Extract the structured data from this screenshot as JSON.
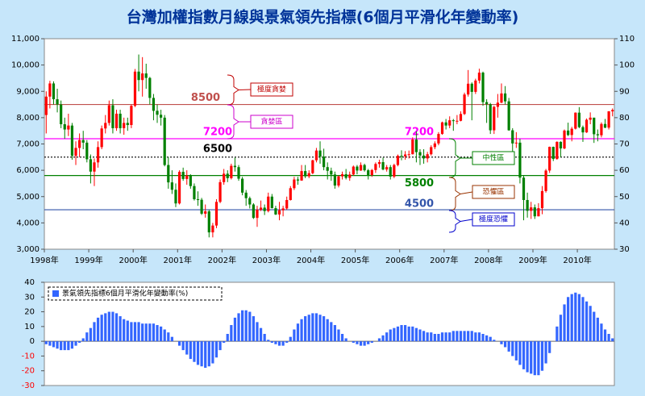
{
  "chart_data": [
    {
      "type": "candlestick",
      "title": "台灣加權指數月線與景氣領先指標(6個月平滑化年變動率)",
      "categories": [
        "1998年",
        null,
        null,
        null,
        null,
        null,
        null,
        null,
        null,
        null,
        null,
        null,
        "1999年",
        null,
        null,
        null,
        null,
        null,
        null,
        null,
        null,
        null,
        null,
        null,
        "2000年",
        null,
        null,
        null,
        null,
        null,
        null,
        null,
        null,
        null,
        null,
        null,
        "2001年",
        null,
        null,
        null,
        null,
        null,
        null,
        null,
        null,
        null,
        null,
        null,
        "2002年",
        null,
        null,
        null,
        null,
        null,
        null,
        null,
        null,
        null,
        null,
        null,
        "2003年",
        null,
        null,
        null,
        null,
        null,
        null,
        null,
        null,
        null,
        null,
        null,
        "2004年",
        null,
        null,
        null,
        null,
        null,
        null,
        null,
        null,
        null,
        null,
        null,
        "2005年",
        null,
        null,
        null,
        null,
        null,
        null,
        null,
        null,
        null,
        null,
        null,
        "2006年",
        null,
        null,
        null,
        null,
        null,
        null,
        null,
        null,
        null,
        null,
        null,
        "2007年",
        null,
        null,
        null,
        null,
        null,
        null,
        null,
        null,
        null,
        null,
        null,
        "2008年",
        null,
        null,
        null,
        null,
        null,
        null,
        null,
        null,
        null,
        null,
        null,
        "2009年",
        null,
        null,
        null,
        null,
        null,
        null,
        null,
        null,
        null,
        null,
        null,
        "2010年",
        null,
        null,
        null,
        null,
        null,
        null,
        null,
        null,
        null
      ],
      "open": [
        8100,
        8800,
        9300,
        8700,
        8500,
        7750,
        7550,
        7700,
        6550,
        6850,
        7150,
        7050,
        6420,
        5950,
        6300,
        6880,
        7590,
        7800,
        8470,
        7600,
        8150,
        7600,
        7800,
        7720,
        8450,
        9750,
        9430,
        9680,
        9510,
        8750,
        8260,
        8110,
        8000,
        6200,
        5540,
        5260,
        4740,
        5940,
        5670,
        5800,
        5400,
        4900,
        4880,
        4350,
        4440,
        3640,
        3900,
        4800,
        5550,
        5870,
        5700,
        6170,
        6120,
        5680,
        5150,
        4940,
        4700,
        4190,
        4500,
        4580,
        4450,
        5000,
        4560,
        4320,
        4480,
        4550,
        4870,
        5320,
        5650,
        5610,
        5970,
        5770,
        5890,
        6380,
        6750,
        6520,
        6120,
        5980,
        5840,
        5420,
        5770,
        5850,
        5710,
        5840,
        6140,
        5990,
        6200,
        6000,
        5820,
        6010,
        6240,
        6310,
        6030,
        6120,
        5760,
        6200,
        6550,
        6530,
        6600,
        6610,
        7170,
        6690,
        6560,
        6450,
        6610,
        6880,
        7020,
        7380,
        7820,
        7700,
        7900,
        7880,
        7880,
        8140,
        8880,
        9290,
        8980,
        9410,
        9710,
        8590,
        8510,
        7520,
        8410,
        8570,
        8920,
        8620,
        7520,
        7020,
        7050,
        5720,
        4870,
        4460,
        4590,
        4250,
        4560,
        5210,
        5990,
        6890,
        6430,
        7080,
        6830,
        7510,
        7340,
        7580,
        8190,
        7640,
        7440,
        7920,
        8000,
        7370,
        7330,
        7760,
        7620,
        8240
      ],
      "high": [
        9000,
        9400,
        9380,
        9100,
        8650,
        8000,
        8150,
        7800,
        7100,
        7400,
        7500,
        7150,
        6600,
        6450,
        7100,
        7700,
        8100,
        8650,
        8700,
        8300,
        8300,
        8000,
        8000,
        8500,
        9850,
        10400,
        10300,
        10050,
        9550,
        8900,
        8500,
        8300,
        8100,
        6500,
        6000,
        5500,
        6000,
        6100,
        6000,
        5850,
        5500,
        5200,
        4950,
        4700,
        4500,
        4000,
        4900,
        5650,
        6050,
        6000,
        6250,
        6480,
        6200,
        5750,
        5250,
        5000,
        4750,
        4650,
        4850,
        4700,
        5150,
        5100,
        4650,
        4800,
        4650,
        5000,
        5400,
        5750,
        5750,
        6200,
        6200,
        6000,
        6400,
        6850,
        7100,
        6820,
        6300,
        6100,
        5950,
        5800,
        5950,
        6050,
        5950,
        6180,
        6200,
        6300,
        6250,
        6050,
        6050,
        6300,
        6400,
        6480,
        6200,
        6200,
        6250,
        6600,
        6760,
        6730,
        6750,
        7250,
        7480,
        6800,
        6800,
        6700,
        6950,
        7100,
        7450,
        7850,
        7950,
        8050,
        7950,
        8100,
        8240,
        8950,
        9810,
        9340,
        9480,
        9860,
        9750,
        8700,
        8560,
        8450,
        8900,
        9300,
        9200,
        8750,
        7600,
        7450,
        7200,
        5800,
        5150,
        4800,
        4700,
        4750,
        5400,
        6050,
        6900,
        6900,
        7100,
        7100,
        7550,
        7810,
        7650,
        8200,
        8400,
        7700,
        7970,
        8200,
        8000,
        7550,
        7820,
        7950,
        8250,
        8350
      ],
      "low": [
        7400,
        8350,
        8500,
        8200,
        7600,
        7200,
        7300,
        6400,
        6200,
        6500,
        6800,
        6300,
        5500,
        5400,
        6100,
        6800,
        7400,
        7700,
        7400,
        7500,
        7400,
        7350,
        7500,
        7600,
        8400,
        9000,
        8800,
        9100,
        8500,
        7900,
        7800,
        7700,
        6150,
        5300,
        5100,
        4600,
        4700,
        5600,
        5450,
        5300,
        4850,
        4650,
        4300,
        4200,
        3450,
        3450,
        3800,
        4750,
        5450,
        5550,
        5650,
        5950,
        5600,
        5050,
        4650,
        4550,
        4150,
        3850,
        4450,
        4300,
        4400,
        4550,
        4300,
        4100,
        4250,
        4500,
        4850,
        5250,
        5450,
        5600,
        5700,
        5700,
        5850,
        6300,
        6250,
        6000,
        5650,
        5600,
        5300,
        5350,
        5650,
        5650,
        5600,
        5800,
        5850,
        5980,
        5950,
        5650,
        5750,
        5900,
        6100,
        6000,
        5950,
        5650,
        5700,
        6150,
        6380,
        6400,
        6450,
        6600,
        6300,
        6200,
        6250,
        6300,
        6560,
        6800,
        6950,
        7350,
        7550,
        7600,
        7500,
        7750,
        7860,
        8100,
        8800,
        7900,
        8900,
        9300,
        8450,
        7800,
        7380,
        7380,
        8000,
        8550,
        8500,
        7500,
        6700,
        6850,
        5500,
        4100,
        4200,
        4150,
        4150,
        4250,
        4330,
        5150,
        5900,
        6350,
        6400,
        6500,
        6800,
        7300,
        7100,
        7550,
        7600,
        7080,
        7420,
        7750,
        7040,
        7100,
        7250,
        7600,
        7550,
        8050
      ],
      "close": [
        8800,
        9300,
        8700,
        8500,
        7750,
        7550,
        7700,
        6550,
        6850,
        7150,
        7050,
        6420,
        5950,
        6300,
        6880,
        7590,
        7800,
        8470,
        7600,
        8150,
        7600,
        7800,
        7720,
        8450,
        9750,
        9430,
        9680,
        9510,
        8750,
        8260,
        8110,
        8000,
        6200,
        5540,
        5260,
        4740,
        5940,
        5670,
        5800,
        5400,
        4900,
        4880,
        4350,
        4440,
        3640,
        3900,
        4800,
        5550,
        5870,
        5700,
        6170,
        6120,
        5680,
        5150,
        4940,
        4700,
        4190,
        4500,
        4580,
        4450,
        5000,
        4560,
        4320,
        4480,
        4550,
        4870,
        5320,
        5650,
        5610,
        5970,
        5770,
        5890,
        6380,
        6750,
        6520,
        6120,
        5980,
        5840,
        5420,
        5770,
        5850,
        5710,
        5840,
        6140,
        5990,
        6200,
        6000,
        5820,
        6010,
        6240,
        6310,
        6030,
        6120,
        5760,
        6200,
        6550,
        6530,
        6600,
        6610,
        7170,
        6690,
        6560,
        6450,
        6610,
        6880,
        7020,
        7380,
        7820,
        7700,
        7900,
        7880,
        7880,
        8140,
        8880,
        9290,
        8980,
        9410,
        9710,
        8590,
        8510,
        7520,
        8410,
        8570,
        8920,
        8620,
        7520,
        7020,
        7050,
        5720,
        4870,
        4460,
        4590,
        4250,
        4560,
        5210,
        5990,
        6890,
        6430,
        7080,
        6830,
        7510,
        7340,
        7580,
        8190,
        7640,
        7440,
        7920,
        8000,
        7370,
        7330,
        7760,
        7620,
        8240,
        8290
      ],
      "up_color": "#ff0000",
      "down_color": "#008000",
      "ylim": [
        3000,
        11000
      ],
      "yticks": [
        {
          "value": 3000,
          "label": "3,000"
        },
        {
          "value": 4000,
          "label": "4,000"
        },
        {
          "value": 5000,
          "label": "5,000"
        },
        {
          "value": 6000,
          "label": "6,000"
        },
        {
          "value": 7000,
          "label": "7,000"
        },
        {
          "value": 8000,
          "label": "8,000"
        },
        {
          "value": 9000,
          "label": "9,000"
        },
        {
          "value": 10000,
          "label": "10,000"
        },
        {
          "value": 11000,
          "label": "11,000"
        }
      ],
      "y2lim": [
        30,
        110
      ],
      "y2ticks": [
        30,
        40,
        50,
        60,
        70,
        80,
        90,
        100,
        110
      ],
      "reference_lines": [
        {
          "value": 8500,
          "color": "#c0504d"
        },
        {
          "value": 7200,
          "color": "#ff00ff"
        },
        {
          "value": 6500,
          "color": "#000000"
        },
        {
          "value": 5800,
          "color": "#008000"
        },
        {
          "value": 4500,
          "color": "#3355aa"
        }
      ],
      "zones": [
        {
          "label": "極度貪婪",
          "color": "#c00000"
        },
        {
          "label": "貪婪區",
          "color": "#cc00cc"
        },
        {
          "label": "中性區",
          "color": "#008000"
        },
        {
          "label": "恐懼區",
          "color": "#993300"
        },
        {
          "label": "極度恐懼",
          "color": "#0000cc"
        }
      ]
    },
    {
      "type": "bar",
      "series": [
        {
          "name": "景氣領先指標6個月平滑化年變動率(%)",
          "color": "#3366ff",
          "values": [
            -2,
            -3,
            -4,
            -5,
            -6,
            -6,
            -6,
            -5,
            -3,
            -1,
            2,
            6,
            9,
            13,
            16,
            18,
            19,
            20,
            20,
            19,
            17,
            15,
            14,
            13,
            13,
            13,
            12,
            12,
            12,
            12,
            11,
            10,
            8,
            6,
            3,
            0,
            -3,
            -6,
            -9,
            -12,
            -14,
            -16,
            -17,
            -18,
            -17,
            -15,
            -11,
            -6,
            -1,
            5,
            11,
            16,
            19,
            21,
            21,
            20,
            17,
            13,
            9,
            5,
            1,
            -1,
            -2,
            -3,
            -3,
            -1,
            3,
            8,
            12,
            15,
            17,
            18,
            19,
            19,
            18,
            17,
            15,
            13,
            11,
            8,
            5,
            2,
            0,
            -1,
            -2,
            -3,
            -3,
            -2,
            -1,
            0,
            2,
            4,
            6,
            8,
            9,
            10,
            11,
            11,
            10,
            10,
            9,
            8,
            7,
            6,
            6,
            5,
            5,
            6,
            6,
            6,
            7,
            7,
            7,
            7,
            7,
            7,
            6,
            6,
            5,
            4,
            3,
            1,
            0,
            -2,
            -4,
            -7,
            -10,
            -13,
            -16,
            -19,
            -21,
            -22,
            -23,
            -23,
            -20,
            -15,
            -8,
            0,
            10,
            18,
            25,
            30,
            32,
            33,
            32,
            30,
            27,
            24,
            20,
            16,
            12,
            8,
            5,
            2
          ]
        }
      ],
      "ylim": [
        -30,
        40
      ],
      "yticks": [
        -30,
        -20,
        -10,
        0,
        10,
        20,
        30,
        40
      ],
      "negative_tick_color": "#ff0000"
    }
  ]
}
